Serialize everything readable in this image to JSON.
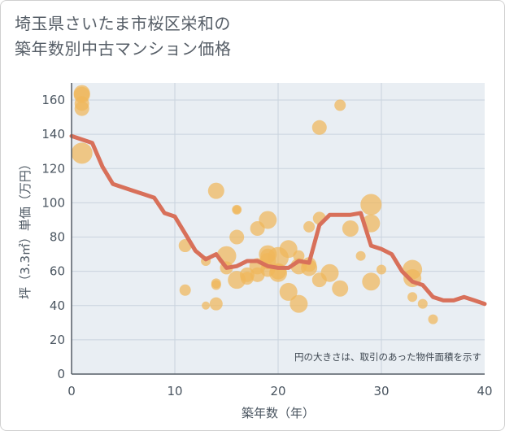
{
  "title_lines": [
    "埼玉県さいたま市桜区栄和の",
    "築年数別中古マンション価格"
  ],
  "chart_data": {
    "type": "scatter+line",
    "title": "埼玉県さいたま市桜区栄和の築年数別中古マンション価格",
    "xlabel": "築年数（年）",
    "ylabel": "坪（3.3㎡）単価（万円）",
    "xlim": [
      0,
      40
    ],
    "ylim": [
      0,
      170
    ],
    "xticks": [
      0,
      10,
      20,
      30,
      40
    ],
    "yticks": [
      0,
      20,
      40,
      60,
      80,
      100,
      120,
      140,
      160
    ],
    "annotation": "円の大きさは、取引のあった物件面積を示す",
    "colors": {
      "bubble": "#f0b75a",
      "line": "#d8705a",
      "grid": "#c9d3de",
      "plot_bg": "#e9eef3",
      "axis": "#555d66"
    },
    "scatter": [
      {
        "x": 1,
        "y": 164,
        "s": 10
      },
      {
        "x": 1,
        "y": 163,
        "s": 10
      },
      {
        "x": 1,
        "y": 158,
        "s": 9
      },
      {
        "x": 1,
        "y": 155,
        "s": 9
      },
      {
        "x": 1,
        "y": 129,
        "s": 13
      },
      {
        "x": 11,
        "y": 75,
        "s": 8
      },
      {
        "x": 11,
        "y": 49,
        "s": 7
      },
      {
        "x": 13,
        "y": 66,
        "s": 6
      },
      {
        "x": 13,
        "y": 40,
        "s": 5
      },
      {
        "x": 14,
        "y": 107,
        "s": 10
      },
      {
        "x": 14,
        "y": 53,
        "s": 6
      },
      {
        "x": 14,
        "y": 52,
        "s": 6
      },
      {
        "x": 14,
        "y": 41,
        "s": 8
      },
      {
        "x": 15,
        "y": 69,
        "s": 12
      },
      {
        "x": 15,
        "y": 62,
        "s": 8
      },
      {
        "x": 16,
        "y": 96,
        "s": 6
      },
      {
        "x": 16,
        "y": 96,
        "s": 5
      },
      {
        "x": 16,
        "y": 80,
        "s": 9
      },
      {
        "x": 16,
        "y": 55,
        "s": 11
      },
      {
        "x": 17,
        "y": 58,
        "s": 9
      },
      {
        "x": 17,
        "y": 56,
        "s": 8
      },
      {
        "x": 18,
        "y": 85,
        "s": 9
      },
      {
        "x": 18,
        "y": 63,
        "s": 10
      },
      {
        "x": 18,
        "y": 58,
        "s": 9
      },
      {
        "x": 19,
        "y": 90,
        "s": 11
      },
      {
        "x": 19,
        "y": 70,
        "s": 11
      },
      {
        "x": 19,
        "y": 69,
        "s": 9
      },
      {
        "x": 19,
        "y": 66,
        "s": 10
      },
      {
        "x": 19,
        "y": 61,
        "s": 9
      },
      {
        "x": 20,
        "y": 68,
        "s": 13
      },
      {
        "x": 20,
        "y": 60,
        "s": 10
      },
      {
        "x": 20,
        "y": 59,
        "s": 11
      },
      {
        "x": 21,
        "y": 73,
        "s": 11
      },
      {
        "x": 21,
        "y": 48,
        "s": 11
      },
      {
        "x": 22,
        "y": 69,
        "s": 7
      },
      {
        "x": 22,
        "y": 63,
        "s": 10
      },
      {
        "x": 22,
        "y": 41,
        "s": 11
      },
      {
        "x": 23,
        "y": 86,
        "s": 7
      },
      {
        "x": 23,
        "y": 64,
        "s": 9
      },
      {
        "x": 23,
        "y": 62,
        "s": 10
      },
      {
        "x": 24,
        "y": 144,
        "s": 9
      },
      {
        "x": 24,
        "y": 91,
        "s": 8
      },
      {
        "x": 24,
        "y": 55,
        "s": 9
      },
      {
        "x": 25,
        "y": 59,
        "s": 11
      },
      {
        "x": 26,
        "y": 157,
        "s": 7
      },
      {
        "x": 26,
        "y": 50,
        "s": 10
      },
      {
        "x": 27,
        "y": 85,
        "s": 10
      },
      {
        "x": 28,
        "y": 69,
        "s": 6
      },
      {
        "x": 29,
        "y": 99,
        "s": 13
      },
      {
        "x": 29,
        "y": 88,
        "s": 11
      },
      {
        "x": 29,
        "y": 54,
        "s": 11
      },
      {
        "x": 30,
        "y": 61,
        "s": 6
      },
      {
        "x": 33,
        "y": 61,
        "s": 12
      },
      {
        "x": 33,
        "y": 56,
        "s": 11
      },
      {
        "x": 33,
        "y": 45,
        "s": 6
      },
      {
        "x": 34,
        "y": 41,
        "s": 6
      },
      {
        "x": 35,
        "y": 32,
        "s": 6
      }
    ],
    "line": {
      "x": [
        0,
        1,
        2,
        3,
        4,
        5,
        6,
        7,
        8,
        9,
        10,
        11,
        12,
        13,
        14,
        15,
        16,
        17,
        18,
        19,
        20,
        21,
        22,
        23,
        24,
        25,
        26,
        27,
        28,
        29,
        30,
        31,
        32,
        33,
        34,
        35,
        36,
        37,
        38,
        39,
        40
      ],
      "y": [
        139,
        137,
        135,
        121,
        111,
        109,
        107,
        105,
        103,
        94,
        92,
        82,
        72,
        67,
        70,
        62,
        63,
        66,
        66,
        63,
        62,
        62,
        66,
        65,
        87,
        93,
        93,
        93,
        94,
        75,
        73,
        70,
        60,
        54,
        52,
        45,
        43,
        43,
        45,
        43,
        41
      ]
    }
  }
}
